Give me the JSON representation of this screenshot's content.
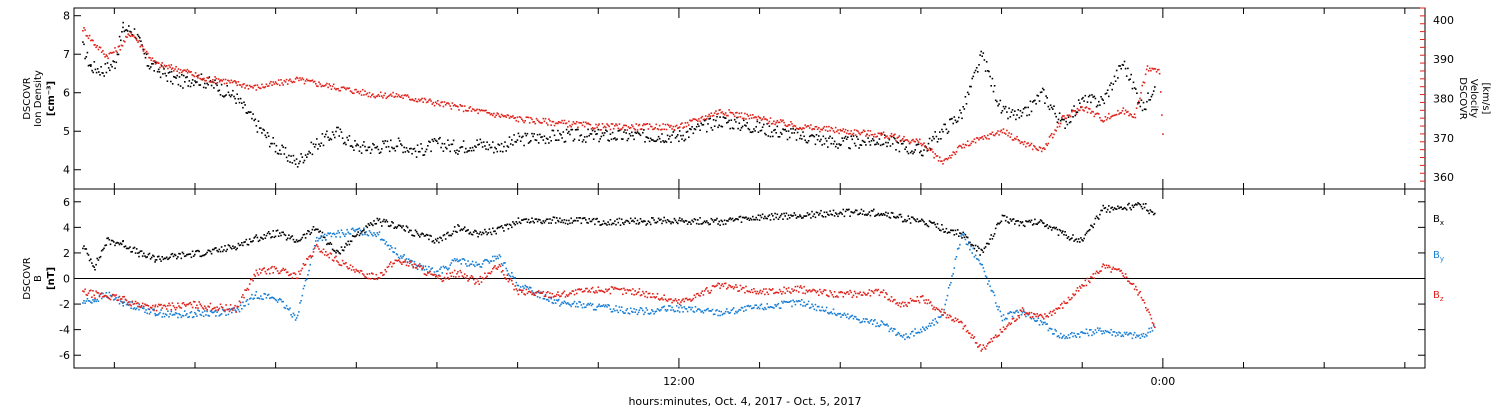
{
  "colors": {
    "black": "#000000",
    "red": "#e0231c",
    "blue": "#1a7fd4",
    "background": "#ffffff"
  },
  "x_axis": {
    "title": "hours:minutes, Oct.  4, 2017 - Oct.  5, 2017",
    "ticks": [
      {
        "hour": 12,
        "label": "12:00"
      },
      {
        "hour": 24,
        "label": "0:00"
      }
    ],
    "range_hours": [
      -3,
      30.5
    ],
    "minor_tick_step_hours": 2
  },
  "chart_data": [
    {
      "type": "scatter",
      "title": "",
      "x_unit": "hours since Oct. 4, 2017 00:00",
      "left_axis": {
        "label_lines": [
          "DSCOVR",
          "Ion Density",
          "[cm⁻³]"
        ],
        "ticks": [
          4,
          5,
          6,
          7,
          8
        ],
        "ylim": [
          3.5,
          8.2
        ],
        "color": "#000000"
      },
      "right_axis": {
        "label_lines": [
          "DSCOVR",
          "Velocity",
          "[km/s]"
        ],
        "ticks": [
          360,
          370,
          380,
          390,
          400
        ],
        "ylim": [
          357,
          403
        ],
        "color": "#e0231c"
      },
      "series": [
        {
          "name": "Ion Density",
          "axis": "left",
          "color": "#000000",
          "x": [
            -2.8,
            -2.6,
            -2.3,
            -2.0,
            -1.8,
            -1.5,
            -1.2,
            -0.9,
            -0.6,
            -0.3,
            0.0,
            0.5,
            1.0,
            1.5,
            2.0,
            2.5,
            3.0,
            3.5,
            4.0,
            4.5,
            5.0,
            5.5,
            6.0,
            6.5,
            7.0,
            7.5,
            8.0,
            9.0,
            10.0,
            11.0,
            12.0,
            13.0,
            14.0,
            15.0,
            16.0,
            17.0,
            18.0,
            18.5,
            19.0,
            19.5,
            20.0,
            20.5,
            21.0,
            21.5,
            22.0,
            22.5,
            23.0,
            23.5,
            23.8
          ],
          "y": [
            7.2,
            6.7,
            6.6,
            6.8,
            7.7,
            7.6,
            6.8,
            6.6,
            6.4,
            6.3,
            6.4,
            6.2,
            5.9,
            5.2,
            4.6,
            4.2,
            4.7,
            5.0,
            4.6,
            4.6,
            4.7,
            4.5,
            4.7,
            4.6,
            4.7,
            4.6,
            4.8,
            4.9,
            4.9,
            4.9,
            4.9,
            5.3,
            5.1,
            4.9,
            4.7,
            4.8,
            4.5,
            5.0,
            5.5,
            7.0,
            5.5,
            5.4,
            6.0,
            5.2,
            5.8,
            5.8,
            6.8,
            5.6,
            6.3
          ]
        },
        {
          "name": "Velocity",
          "axis": "right",
          "color": "#e0231c",
          "x": [
            -2.8,
            -2.5,
            -2.2,
            -1.9,
            -1.6,
            -1.3,
            -1.0,
            -0.6,
            -0.2,
            0.2,
            0.6,
            1.0,
            1.5,
            2.0,
            2.5,
            3.0,
            3.5,
            4.0,
            4.5,
            5.0,
            5.5,
            6.0,
            6.5,
            7.0,
            7.5,
            8.0,
            9.0,
            10.0,
            11.0,
            12.0,
            13.0,
            14.0,
            15.0,
            16.0,
            17.0,
            18.0,
            18.5,
            19.0,
            19.5,
            20.0,
            20.5,
            21.0,
            21.5,
            22.0,
            22.5,
            23.0,
            23.3,
            23.6,
            23.9,
            24.0
          ],
          "y": [
            398,
            394,
            391,
            393,
            397,
            393,
            389,
            388,
            387,
            385,
            385,
            384,
            383,
            384,
            385,
            384,
            383,
            382,
            381,
            381,
            380,
            379,
            378,
            377,
            376,
            375,
            374,
            373,
            373,
            373,
            377,
            375,
            373,
            372,
            371,
            369,
            364,
            368,
            370,
            372,
            369,
            367,
            375,
            378,
            375,
            377,
            376,
            388,
            387,
            368
          ]
        }
      ]
    },
    {
      "type": "scatter",
      "title": "",
      "x_unit": "hours since Oct. 4, 2017 00:00",
      "left_axis": {
        "label_lines": [
          "DSCOVR",
          "B",
          "[nT]"
        ],
        "ticks": [
          -6,
          -4,
          -2,
          0,
          2,
          4,
          6
        ],
        "ylim": [
          -7,
          7
        ],
        "color": "#000000"
      },
      "zero_line": true,
      "legend_placement": "right",
      "series": [
        {
          "name": "Bx",
          "legend_main": "B",
          "legend_sub": "x",
          "color": "#000000",
          "x": [
            -2.8,
            -2.5,
            -2.2,
            -1.8,
            -1.4,
            -1.0,
            -0.5,
            0.0,
            0.5,
            1.0,
            1.5,
            2.0,
            2.5,
            3.0,
            3.5,
            4.0,
            4.5,
            5.0,
            5.5,
            6.0,
            6.5,
            7.0,
            7.5,
            8.0,
            9.0,
            10.0,
            11.0,
            12.0,
            13.0,
            14.0,
            15.0,
            16.0,
            17.0,
            17.5,
            18.0,
            18.5,
            19.0,
            19.5,
            20.0,
            20.5,
            21.0,
            21.5,
            22.0,
            22.5,
            23.0,
            23.5,
            23.8
          ],
          "y": [
            2.6,
            1.0,
            3.0,
            2.8,
            2.0,
            1.6,
            1.8,
            2.0,
            2.2,
            2.6,
            3.2,
            3.6,
            3.0,
            4.0,
            2.0,
            3.5,
            4.5,
            4.2,
            3.5,
            3.0,
            4.0,
            3.6,
            3.8,
            4.6,
            4.6,
            4.5,
            4.5,
            4.6,
            4.5,
            4.8,
            5.0,
            5.2,
            5.2,
            4.8,
            4.5,
            4.0,
            3.5,
            2.0,
            4.8,
            4.4,
            4.5,
            3.5,
            3.0,
            5.5,
            5.6,
            5.8,
            5.0
          ]
        },
        {
          "name": "By",
          "legend_main": "B",
          "legend_sub": "y",
          "color": "#1a7fd4",
          "x": [
            -2.8,
            -2.5,
            -2.2,
            -1.8,
            -1.4,
            -1.0,
            -0.5,
            0.0,
            0.5,
            1.0,
            1.5,
            2.0,
            2.5,
            3.0,
            3.5,
            4.0,
            4.5,
            5.0,
            5.5,
            6.0,
            6.5,
            7.0,
            7.5,
            8.0,
            9.0,
            10.0,
            11.0,
            12.0,
            13.0,
            14.0,
            15.0,
            16.0,
            17.0,
            17.5,
            18.0,
            18.5,
            19.0,
            19.5,
            20.0,
            20.5,
            21.0,
            21.5,
            22.0,
            22.5,
            23.0,
            23.5,
            23.8
          ],
          "y": [
            -1.8,
            -1.6,
            -1.2,
            -1.8,
            -2.2,
            -2.6,
            -2.8,
            -2.7,
            -2.6,
            -2.5,
            -1.2,
            -1.5,
            -3.0,
            3.2,
            3.5,
            3.8,
            3.6,
            2.0,
            1.0,
            0.5,
            1.5,
            1.0,
            1.8,
            -0.5,
            -1.8,
            -2.2,
            -2.5,
            -2.3,
            -2.6,
            -2.2,
            -1.8,
            -2.8,
            -3.5,
            -4.5,
            -4.0,
            -3.0,
            3.6,
            1.0,
            -3.0,
            -2.5,
            -3.5,
            -4.5,
            -4.2,
            -4.0,
            -4.3,
            -4.5,
            -3.5
          ]
        },
        {
          "name": "Bz",
          "legend_main": "B",
          "legend_sub": "z",
          "color": "#e0231c",
          "x": [
            -2.8,
            -2.5,
            -2.2,
            -1.8,
            -1.4,
            -1.0,
            -0.5,
            0.0,
            0.5,
            1.0,
            1.5,
            2.0,
            2.5,
            3.0,
            3.5,
            4.0,
            4.5,
            5.0,
            5.5,
            6.0,
            6.5,
            7.0,
            7.5,
            8.0,
            9.0,
            10.0,
            11.0,
            12.0,
            13.0,
            14.0,
            15.0,
            16.0,
            17.0,
            17.5,
            18.0,
            18.5,
            19.0,
            19.5,
            20.0,
            20.5,
            21.0,
            21.5,
            22.0,
            22.5,
            23.0,
            23.5,
            23.8
          ],
          "y": [
            -1.0,
            -1.2,
            -1.3,
            -1.6,
            -2.0,
            -2.2,
            -2.1,
            -2.0,
            -2.2,
            -2.3,
            0.5,
            0.8,
            0.2,
            2.5,
            1.5,
            0.5,
            0.2,
            1.5,
            1.0,
            0.0,
            0.5,
            -0.2,
            1.0,
            -1.0,
            -1.2,
            -0.8,
            -1.0,
            -1.8,
            -0.5,
            -1.0,
            -0.8,
            -1.2,
            -1.0,
            -2.0,
            -1.5,
            -2.5,
            -3.5,
            -5.5,
            -4.0,
            -2.5,
            -3.0,
            -2.0,
            -0.5,
            1.0,
            0.5,
            -1.5,
            -4.0
          ]
        }
      ]
    }
  ]
}
